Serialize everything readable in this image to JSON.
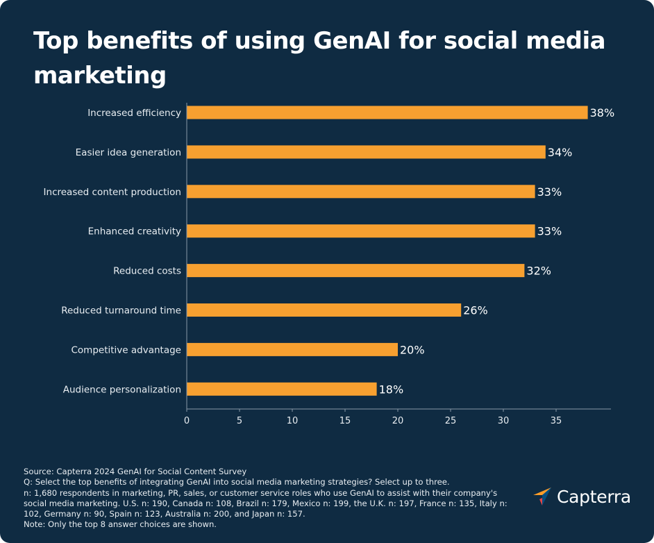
{
  "title": "Top benefits of using GenAI for social media marketing",
  "chart_data": {
    "type": "bar",
    "orientation": "horizontal",
    "categories": [
      "Increased efficiency",
      "Easier idea generation",
      "Increased content production",
      "Enhanced creativity",
      "Reduced costs",
      "Reduced turnaround time",
      "Competitive advantage",
      "Audience personalization"
    ],
    "values": [
      38,
      34,
      33,
      33,
      32,
      26,
      20,
      18
    ],
    "value_labels": [
      "38%",
      "34%",
      "33%",
      "33%",
      "32%",
      "26%",
      "20%",
      "18%"
    ],
    "xticks": [
      "0",
      "5",
      "10",
      "15",
      "20",
      "25",
      "30",
      "35"
    ],
    "xlim": [
      0,
      40
    ],
    "grid": false,
    "bar_color": "#f7a030"
  },
  "footer": {
    "lines": [
      "Source: Capterra 2024 GenAI for Social Content Survey",
      "Q: Select the top benefits of integrating GenAI into social media marketing strategies? Select up to three.",
      "n: 1,680 respondents in marketing, PR, sales, or customer service roles who use GenAI to assist with their company's",
      "social media marketing. U.S. n: 190, Canada n: 108, Brazil n: 179, Mexico n: 199, the U.K. n: 197, France n: 135, Italy n:",
      "102, Germany n: 90, Spain n: 123, Australia n: 200, and Japan n: 157.",
      "Note: Only the top 8 answer choices are shown."
    ]
  },
  "brand": {
    "name": "Capterra",
    "logo_icon": "capterra-arrow-icon",
    "colors": [
      "#ff9d28",
      "#68c5ed",
      "#044d80",
      "#e54747"
    ]
  },
  "colors": {
    "background": "#0f2b42",
    "axis": "#8a9aa8",
    "text": "#e8edf1"
  }
}
